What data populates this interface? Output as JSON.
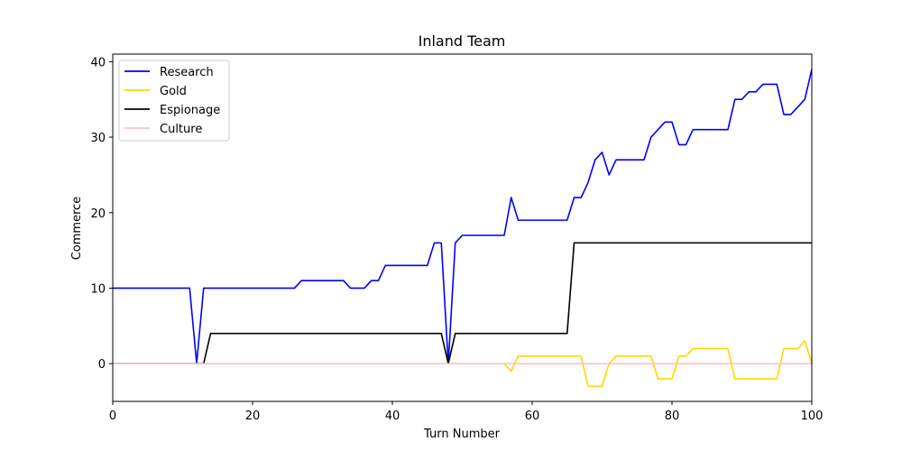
{
  "chart_data": {
    "type": "line",
    "title": "Inland Team",
    "xlabel": "Turn Number",
    "ylabel": "Commerce",
    "xlim": [
      0,
      100
    ],
    "ylim": [
      -5,
      41
    ],
    "xticks": [
      0,
      20,
      40,
      60,
      80,
      100
    ],
    "yticks": [
      0,
      10,
      20,
      30,
      40
    ],
    "grid": false,
    "legend_position": "top-left",
    "x": [
      0,
      1,
      2,
      3,
      4,
      5,
      6,
      7,
      8,
      9,
      10,
      11,
      12,
      13,
      14,
      15,
      16,
      17,
      18,
      19,
      20,
      21,
      22,
      23,
      24,
      25,
      26,
      27,
      28,
      29,
      30,
      31,
      32,
      33,
      34,
      35,
      36,
      37,
      38,
      39,
      40,
      41,
      42,
      43,
      44,
      45,
      46,
      47,
      48,
      49,
      50,
      51,
      52,
      53,
      54,
      55,
      56,
      57,
      58,
      59,
      60,
      61,
      62,
      63,
      64,
      65,
      66,
      67,
      68,
      69,
      70,
      71,
      72,
      73,
      74,
      75,
      76,
      77,
      78,
      79,
      80,
      81,
      82,
      83,
      84,
      85,
      86,
      87,
      88,
      89,
      90,
      91,
      92,
      93,
      94,
      95,
      96,
      97,
      98,
      99,
      100
    ],
    "series": [
      {
        "name": "Research",
        "color": "#0000ff",
        "values": [
          10,
          10,
          10,
          10,
          10,
          10,
          10,
          10,
          10,
          10,
          10,
          10,
          0,
          10,
          10,
          10,
          10,
          10,
          10,
          10,
          10,
          10,
          10,
          10,
          10,
          10,
          10,
          11,
          11,
          11,
          11,
          11,
          11,
          11,
          10,
          10,
          10,
          11,
          11,
          13,
          13,
          13,
          13,
          13,
          13,
          13,
          16,
          16,
          0,
          16,
          17,
          17,
          17,
          17,
          17,
          17,
          17,
          22,
          19,
          19,
          19,
          19,
          19,
          19,
          19,
          19,
          22,
          22,
          24,
          27,
          28,
          25,
          27,
          27,
          27,
          27,
          27,
          30,
          31,
          32,
          32,
          29,
          29,
          31,
          31,
          31,
          31,
          31,
          31,
          35,
          35,
          36,
          36,
          37,
          37,
          37,
          33,
          33,
          34,
          35,
          39
        ]
      },
      {
        "name": "Gold",
        "color": "#ffd700",
        "values": [
          0,
          0,
          0,
          0,
          0,
          0,
          0,
          0,
          0,
          0,
          0,
          0,
          0,
          0,
          0,
          0,
          0,
          0,
          0,
          0,
          0,
          0,
          0,
          0,
          0,
          0,
          0,
          0,
          0,
          0,
          0,
          0,
          0,
          0,
          0,
          0,
          0,
          0,
          0,
          0,
          0,
          0,
          0,
          0,
          0,
          0,
          0,
          0,
          0,
          0,
          0,
          0,
          0,
          0,
          0,
          0,
          0,
          -1,
          1,
          1,
          1,
          1,
          1,
          1,
          1,
          1,
          1,
          1,
          -3,
          -3,
          -3,
          0,
          1,
          1,
          1,
          1,
          1,
          1,
          -2,
          -2,
          -2,
          1,
          1,
          2,
          2,
          2,
          2,
          2,
          2,
          -2,
          -2,
          -2,
          -2,
          -2,
          -2,
          -2,
          2,
          2,
          2,
          3,
          0
        ]
      },
      {
        "name": "Espionage",
        "color": "#000000",
        "values": [
          0,
          0,
          0,
          0,
          0,
          0,
          0,
          0,
          0,
          0,
          0,
          0,
          0,
          0,
          4,
          4,
          4,
          4,
          4,
          4,
          4,
          4,
          4,
          4,
          4,
          4,
          4,
          4,
          4,
          4,
          4,
          4,
          4,
          4,
          4,
          4,
          4,
          4,
          4,
          4,
          4,
          4,
          4,
          4,
          4,
          4,
          4,
          4,
          0,
          4,
          4,
          4,
          4,
          4,
          4,
          4,
          4,
          4,
          4,
          4,
          4,
          4,
          4,
          4,
          4,
          4,
          16,
          16,
          16,
          16,
          16,
          16,
          16,
          16,
          16,
          16,
          16,
          16,
          16,
          16,
          16,
          16,
          16,
          16,
          16,
          16,
          16,
          16,
          16,
          16,
          16,
          16,
          16,
          16,
          16,
          16,
          16,
          16,
          16,
          16,
          16
        ]
      },
      {
        "name": "Culture",
        "color": "#ffc0cb",
        "values": [
          0,
          0,
          0,
          0,
          0,
          0,
          0,
          0,
          0,
          0,
          0,
          0,
          0,
          0,
          0,
          0,
          0,
          0,
          0,
          0,
          0,
          0,
          0,
          0,
          0,
          0,
          0,
          0,
          0,
          0,
          0,
          0,
          0,
          0,
          0,
          0,
          0,
          0,
          0,
          0,
          0,
          0,
          0,
          0,
          0,
          0,
          0,
          0,
          0,
          0,
          0,
          0,
          0,
          0,
          0,
          0,
          0,
          0,
          0,
          0,
          0,
          0,
          0,
          0,
          0,
          0,
          0,
          0,
          0,
          0,
          0,
          0,
          0,
          0,
          0,
          0,
          0,
          0,
          0,
          0,
          0,
          0,
          0,
          0,
          0,
          0,
          0,
          0,
          0,
          0,
          0,
          0,
          0,
          0,
          0,
          0,
          0,
          0,
          0,
          0,
          0
        ]
      }
    ]
  }
}
